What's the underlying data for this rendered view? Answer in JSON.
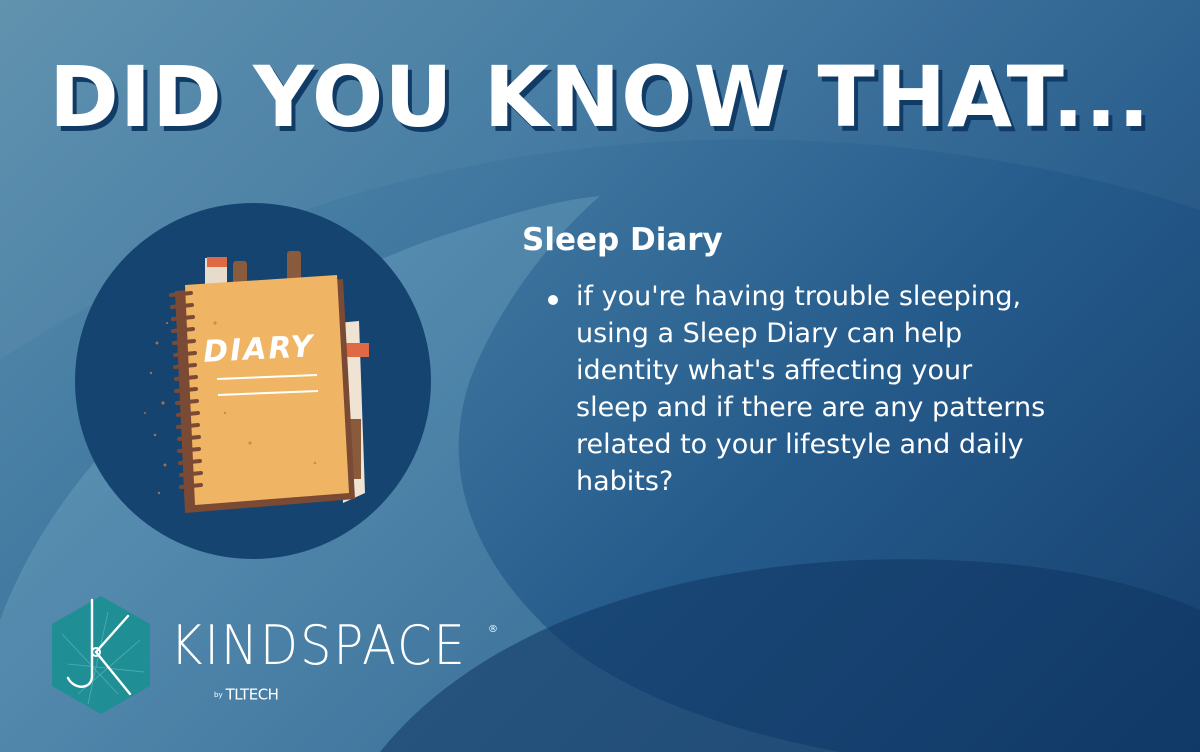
{
  "headline": "DID YOU KNOW THAT...",
  "illustration": {
    "icon": "diary-notebook-icon",
    "cover_label": "DIARY"
  },
  "section": {
    "heading": "Sleep Diary",
    "bullets": [
      "if you're having trouble sleeping, using a Sleep Diary can help identity what's affecting your sleep and if there are any patterns related to your lifestyle and daily habits?"
    ]
  },
  "brand": {
    "name": "KINDSPACE",
    "registered_mark": "®",
    "by_label": "by",
    "company": "TLTECH",
    "logo_icon": "kindspace-hexagon-logo-icon"
  },
  "colors": {
    "navy": "#163f6e",
    "circle": "#154470",
    "text_shadow": "#0f3b66",
    "diary_cover": "#efb565",
    "diary_spine": "#7b4a34",
    "tab_red": "#de6a45",
    "logo_teal": "#1f8f95"
  }
}
